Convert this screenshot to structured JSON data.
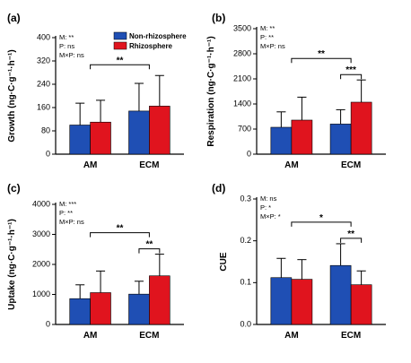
{
  "legend": [
    {
      "name": "Non-rhizosphere",
      "color": "#1f4fb4"
    },
    {
      "name": "Rhizosphere",
      "color": "#e0141e"
    }
  ],
  "chart_data": [
    {
      "type": "bar",
      "panel": "(a)",
      "ylabel": "Growth (ng·C·g⁻¹·h⁻¹)",
      "ylim": [
        0,
        400
      ],
      "yticks": [
        0,
        80,
        160,
        240,
        320,
        400
      ],
      "categories": [
        "AM",
        "ECM"
      ],
      "series": [
        {
          "name": "Non-rhizosphere",
          "values": [
            100,
            148
          ],
          "errors": [
            75,
            95
          ]
        },
        {
          "name": "Rhizosphere",
          "values": [
            110,
            165
          ],
          "errors": [
            75,
            105
          ]
        }
      ],
      "stats": [
        "M: **",
        "P: ns",
        "M×P: ns"
      ],
      "significance": [
        {
          "label": "**",
          "from": "AM",
          "to": "ECM"
        }
      ]
    },
    {
      "type": "bar",
      "panel": "(b)",
      "ylabel": "Respiration (ng·C·g⁻¹·h⁻¹)",
      "ylim": [
        0,
        3500
      ],
      "yticks": [
        0,
        700,
        1400,
        2100,
        2800,
        3500
      ],
      "categories": [
        "AM",
        "ECM"
      ],
      "series": [
        {
          "name": "Non-rhizosphere",
          "values": [
            750,
            840
          ],
          "errors": [
            430,
            400
          ]
        },
        {
          "name": "Rhizosphere",
          "values": [
            950,
            1450
          ],
          "errors": [
            640,
            620
          ]
        }
      ],
      "stats": [
        "M: **",
        "P: **",
        "M×P: ns"
      ],
      "significance": [
        {
          "label": "**",
          "from": "AM",
          "to": "ECM"
        },
        {
          "label": "***",
          "within": "ECM"
        }
      ]
    },
    {
      "type": "bar",
      "panel": "(c)",
      "ylabel": "Uptake (ng·C·g⁻¹·h⁻¹)",
      "ylim": [
        0,
        4000
      ],
      "yticks": [
        0,
        1000,
        2000,
        3000,
        4000
      ],
      "categories": [
        "AM",
        "ECM"
      ],
      "series": [
        {
          "name": "Non-rhizosphere",
          "values": [
            860,
            1010
          ],
          "errors": [
            460,
            430
          ]
        },
        {
          "name": "Rhizosphere",
          "values": [
            1060,
            1620
          ],
          "errors": [
            720,
            720
          ]
        }
      ],
      "stats": [
        "M: ***",
        "P: **",
        "M×P: ns"
      ],
      "significance": [
        {
          "label": "**",
          "from": "AM",
          "to": "ECM"
        },
        {
          "label": "**",
          "within": "ECM"
        }
      ]
    },
    {
      "type": "bar",
      "panel": "(d)",
      "ylabel": "CUE",
      "ylim": [
        0,
        0.3
      ],
      "yticks": [
        0.0,
        0.1,
        0.2,
        0.3
      ],
      "categories": [
        "AM",
        "ECM"
      ],
      "series": [
        {
          "name": "Non-rhizosphere",
          "values": [
            0.112,
            0.141
          ],
          "errors": [
            0.046,
            0.052
          ]
        },
        {
          "name": "Rhizosphere",
          "values": [
            0.108,
            0.095
          ],
          "errors": [
            0.047,
            0.033
          ]
        }
      ],
      "stats": [
        "M: ns",
        "P: *",
        "M×P: *"
      ],
      "significance": [
        {
          "label": "*",
          "from": "AM",
          "to": "ECM"
        },
        {
          "label": "**",
          "within": "ECM"
        }
      ]
    }
  ]
}
